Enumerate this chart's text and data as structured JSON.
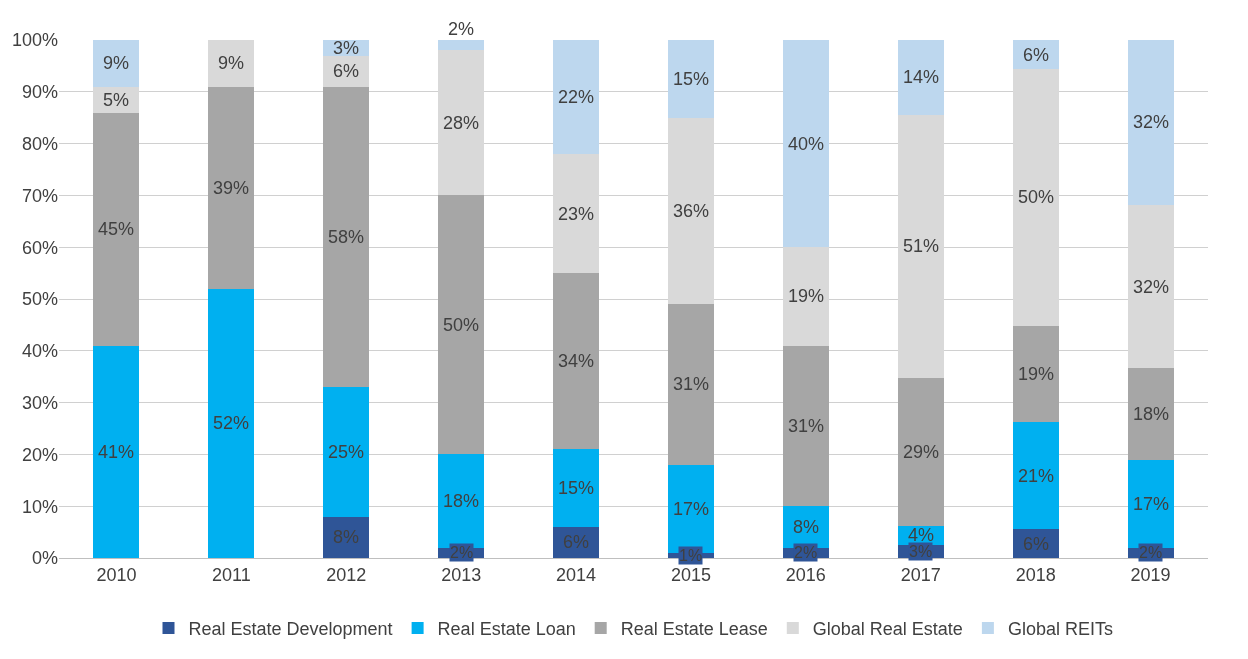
{
  "chart_data": {
    "type": "bar",
    "stacked": true,
    "categories": [
      "2010",
      "2011",
      "2012",
      "2013",
      "2014",
      "2015",
      "2016",
      "2017",
      "2018",
      "2019"
    ],
    "series": [
      {
        "name": "Real Estate Development",
        "color": "#2f5597",
        "values": [
          0,
          0,
          8,
          2,
          6,
          1,
          2,
          2.6,
          5.6,
          2
        ],
        "value_labels": [
          null,
          null,
          "8%",
          "2%",
          "6%",
          "1%",
          "2%",
          "3%",
          "6%",
          "2%"
        ]
      },
      {
        "name": "Real Estate Loan",
        "color": "#00b0f0",
        "values": [
          41,
          52,
          25,
          18,
          15,
          17,
          8,
          3.6,
          20.6,
          17
        ],
        "value_labels": [
          "41%",
          "52%",
          "25%",
          "18%",
          "15%",
          "17%",
          "8%",
          "4%",
          "21%",
          "17%"
        ]
      },
      {
        "name": "Real Estate Lease",
        "color": "#a6a6a6",
        "values": [
          45,
          39,
          58,
          50,
          34,
          31,
          31,
          28.6,
          18.6,
          17.6
        ],
        "value_labels": [
          "45%",
          "39%",
          "58%",
          "50%",
          "34%",
          "31%",
          "31%",
          "29%",
          "19%",
          "18%"
        ]
      },
      {
        "name": "Global Real Estate",
        "color": "#d9d9d9",
        "values": [
          5,
          9,
          6,
          28,
          23,
          36,
          19,
          50.8,
          49.6,
          31.6
        ],
        "value_labels": [
          "5%",
          "9%",
          "6%",
          "28%",
          "23%",
          "36%",
          "19%",
          "51%",
          "50%",
          "32%"
        ]
      },
      {
        "name": "Global REITs",
        "color": "#bdd7ee",
        "values": [
          9,
          0,
          3,
          2,
          22,
          15,
          40,
          14.4,
          5.6,
          31.8
        ],
        "value_labels": [
          "9%",
          null,
          "3%",
          "2%",
          "22%",
          "15%",
          "40%",
          "14%",
          "6%",
          "32%"
        ]
      }
    ],
    "ylim": [
      0,
      100
    ],
    "yticks": [
      {
        "value": 0,
        "label": "0%"
      },
      {
        "value": 10,
        "label": "10%"
      },
      {
        "value": 20,
        "label": "20%"
      },
      {
        "value": 30,
        "label": "30%"
      },
      {
        "value": 40,
        "label": "40%"
      },
      {
        "value": 50,
        "label": "50%"
      },
      {
        "value": 60,
        "label": "60%"
      },
      {
        "value": 70,
        "label": "70%"
      },
      {
        "value": 80,
        "label": "80%"
      },
      {
        "value": 90,
        "label": "90%"
      },
      {
        "value": 100,
        "label": "100%"
      }
    ],
    "grid": "y",
    "legend": "bottom"
  }
}
